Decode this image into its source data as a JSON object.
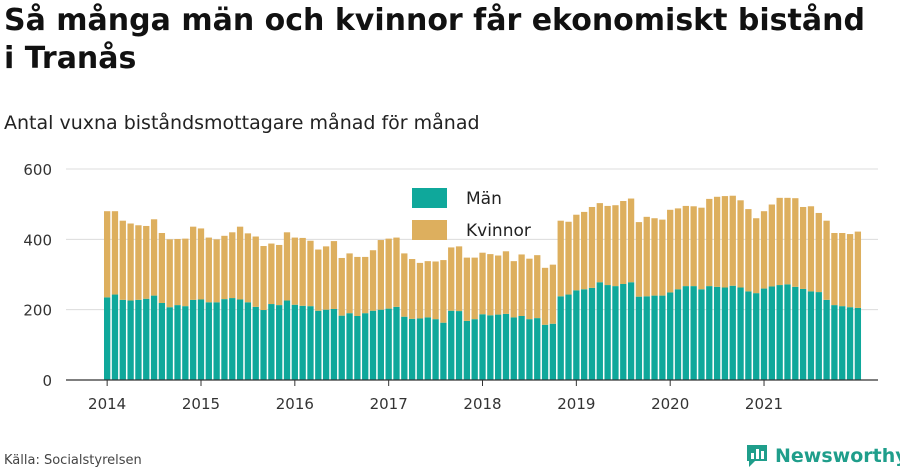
{
  "header": {
    "title": "Så många män och kvinnor får ekonomiskt bistånd i Tranås",
    "subtitle": "Antal vuxna biståndsmottagare månad för månad"
  },
  "footer": {
    "source": "Källa: Socialstyrelsen",
    "brand": "Newsworthy"
  },
  "colors": {
    "man": "#0fa89b",
    "kvinnor": "#ddaf5e",
    "grid": "#dcdcdc",
    "brand": "#1f9e8b"
  },
  "chart_data": {
    "type": "bar",
    "stacked": true,
    "title": "",
    "xlabel": "",
    "ylabel": "",
    "ylim": [
      0,
      600
    ],
    "yticks": [
      0,
      200,
      400,
      600
    ],
    "grid": true,
    "legend_position": "top-center",
    "x_tick_labels": [
      "2014",
      "2015",
      "2016",
      "2017",
      "2018",
      "2019",
      "2020",
      "2021"
    ],
    "x_start": "2014-01",
    "x_end": "2021-11",
    "series": [
      {
        "name": "Män",
        "color": "#0fa89b",
        "values": [
          235,
          243,
          228,
          226,
          228,
          231,
          240,
          219,
          207,
          213,
          210,
          228,
          229,
          221,
          221,
          230,
          233,
          229,
          221,
          208,
          199,
          216,
          213,
          226,
          214,
          211,
          210,
          197,
          200,
          202,
          183,
          190,
          182,
          190,
          197,
          200,
          203,
          208,
          180,
          174,
          175,
          178,
          173,
          163,
          197,
          196,
          168,
          173,
          187,
          184,
          186,
          188,
          178,
          182,
          173,
          176,
          157,
          160,
          238,
          243,
          255,
          258,
          262,
          278,
          270,
          267,
          273,
          278,
          237,
          238,
          240,
          240,
          249,
          258,
          267,
          267,
          258,
          267,
          265,
          263,
          268,
          263,
          252,
          247,
          260,
          266,
          270,
          272,
          265,
          259,
          252,
          250,
          228,
          213,
          210,
          207,
          205
        ],
        "note": ""
      },
      {
        "name": "Kvinnor",
        "values": [
          245,
          237,
          225,
          219,
          212,
          207,
          217,
          199,
          193,
          188,
          192,
          208,
          202,
          184,
          179,
          180,
          187,
          207,
          196,
          200,
          182,
          172,
          171,
          194,
          191,
          193,
          186,
          174,
          180,
          193,
          164,
          170,
          168,
          160,
          172,
          198,
          199,
          197,
          180,
          170,
          158,
          160,
          164,
          178,
          180,
          184,
          180,
          175,
          175,
          174,
          168,
          178,
          160,
          175,
          172,
          179,
          162,
          168,
          215,
          207,
          215,
          220,
          230,
          225,
          225,
          230,
          236,
          238,
          212,
          226,
          220,
          216,
          235,
          230,
          228,
          227,
          232,
          248,
          256,
          260,
          256,
          248,
          234,
          213,
          220,
          233,
          248,
          246,
          252,
          233,
          242,
          225,
          225,
          205,
          208,
          208,
          217
        ],
        "color": "#ddaf5e"
      }
    ]
  }
}
